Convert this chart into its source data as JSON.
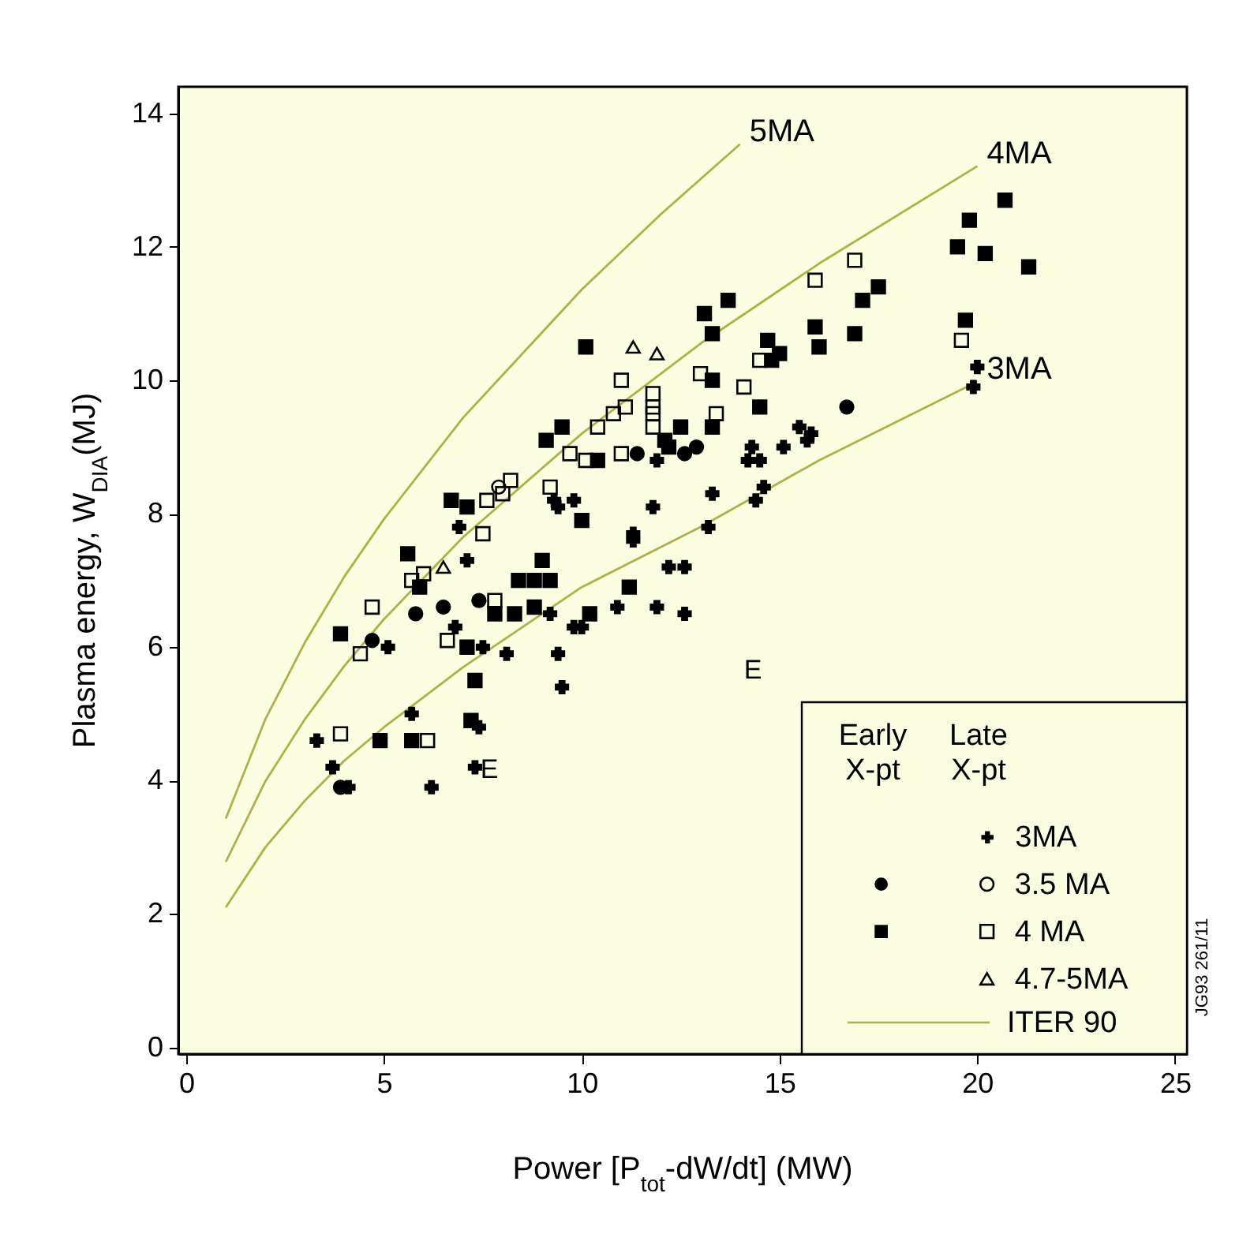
{
  "chart_data": {
    "type": "scatter",
    "xlabel": "Power [P$_{tot}$-dW/dt] (MW)",
    "ylabel": "Plasma energy, W$_{DIA}$(MJ)",
    "xlim": [
      -0.2,
      25.3
    ],
    "ylim": [
      -0.1,
      14.4
    ],
    "xticks": [
      0,
      5,
      10,
      15,
      20,
      25
    ],
    "yticks": [
      0,
      2,
      4,
      6,
      8,
      10,
      12,
      14
    ],
    "legend": "bottom right",
    "annotations": [
      "Early X-pt",
      "Late X-pt",
      "ITER 90",
      "JG93 261/11",
      "E",
      "E"
    ],
    "series": [
      {
        "name": "3MA",
        "marker": "cross",
        "color": "#000000",
        "x": [
          6.9,
          9.3,
          9.8,
          11.8,
          11.3,
          11.9,
          20.0,
          19.9,
          15.5,
          15.8,
          15.7,
          15.1,
          14.3,
          14.2,
          14.5,
          14.6,
          14.4,
          13.3,
          13.2,
          7.1,
          6.8,
          5.1,
          7.5,
          8.1,
          9.4,
          9.5,
          9.2,
          9.8,
          10.0,
          10.9,
          11.9,
          12.6,
          12.2,
          12.6,
          11.3,
          9.4,
          5.7,
          3.3,
          3.7,
          4.1,
          6.2,
          7.4,
          7.3
        ],
        "values": [
          7.8,
          8.2,
          8.2,
          8.1,
          7.7,
          8.8,
          10.2,
          9.9,
          9.3,
          9.2,
          9.1,
          9.0,
          9.0,
          8.8,
          8.8,
          8.4,
          8.2,
          8.3,
          7.8,
          7.3,
          6.3,
          6.0,
          6.0,
          5.9,
          5.9,
          5.4,
          6.5,
          6.3,
          6.3,
          6.6,
          6.6,
          6.5,
          7.2,
          7.2,
          7.6,
          8.1,
          5.0,
          4.6,
          4.2,
          3.9,
          3.9,
          4.8,
          4.2
        ]
      },
      {
        "marker": "circle",
        "color": "#000000",
        "x": [
          11.4,
          12.6,
          12.9,
          16.7,
          6.5,
          5.8,
          7.4,
          4.7,
          3.9
        ],
        "values": [
          8.9,
          8.9,
          9.0,
          9.6,
          6.6,
          6.5,
          6.7,
          6.1,
          3.9
        ]
      },
      {
        "name": "3.5 MA",
        "marker": "circle",
        "color": "#000000",
        "x": [
          7.9
        ],
        "values": [
          8.4
        ]
      },
      {
        "marker": "square",
        "color": "#000000",
        "x": [
          10.1,
          13.1,
          12.5,
          9.1,
          9.5,
          6.7,
          7.1,
          10.0,
          10.4,
          12.2,
          20.7,
          19.8,
          19.5,
          20.2,
          21.3,
          19.7,
          17.5,
          17.1,
          16.9,
          15.9,
          16.0,
          13.7,
          13.3,
          14.7,
          15.0,
          14.8,
          13.3,
          14.5,
          13.3,
          12.1,
          5.6,
          5.9,
          3.9,
          8.4,
          8.8,
          9.2,
          7.8,
          8.3,
          8.8,
          7.1,
          7.3,
          7.2,
          4.9,
          5.7,
          11.2,
          10.2,
          9.0
        ],
        "values": [
          10.5,
          11.0,
          9.3,
          9.1,
          9.3,
          8.2,
          8.1,
          7.9,
          8.8,
          9.0,
          12.7,
          12.4,
          12.0,
          11.9,
          11.7,
          10.9,
          11.4,
          11.2,
          10.7,
          10.8,
          10.5,
          11.2,
          10.7,
          10.6,
          10.4,
          10.3,
          10.0,
          9.6,
          9.3,
          9.1,
          7.4,
          6.9,
          6.2,
          7.0,
          7.0,
          7.0,
          6.5,
          6.5,
          6.6,
          6.0,
          5.5,
          4.9,
          4.6,
          4.6,
          6.9,
          6.5,
          7.3
        ]
      },
      {
        "name": "4 MA",
        "marker": "square",
        "color": "#000000",
        "x": [
          11.0,
          13.0,
          11.8,
          11.8,
          11.8,
          11.8,
          11.1,
          10.8,
          10.4,
          9.7,
          10.1,
          11.0,
          8.2,
          8.0,
          7.6,
          9.2,
          7.5,
          15.9,
          16.9,
          14.5,
          14.1,
          13.4,
          19.6,
          4.7,
          4.4,
          5.7,
          6.0,
          6.6,
          3.9,
          6.1,
          7.8
        ],
        "values": [
          10.0,
          10.1,
          9.8,
          9.6,
          9.5,
          9.3,
          9.6,
          9.5,
          9.3,
          8.9,
          8.8,
          8.9,
          8.5,
          8.3,
          8.2,
          8.4,
          7.7,
          11.5,
          11.8,
          10.3,
          9.9,
          9.5,
          10.6,
          6.6,
          5.9,
          7.0,
          7.1,
          6.1,
          4.7,
          4.6,
          6.7
        ]
      },
      {
        "name": "4.7-5MA",
        "marker": "triangle",
        "color": "#000000",
        "x": [
          11.3,
          11.9,
          6.5
        ],
        "values": [
          10.5,
          10.4,
          7.2
        ]
      },
      {
        "name": "5MA",
        "type": "line",
        "color": "#aeb244",
        "x": [
          1,
          2,
          3,
          4,
          5,
          7,
          10,
          12,
          14
        ],
        "values": [
          3.43,
          4.92,
          6.07,
          7.06,
          7.92,
          9.44,
          11.36,
          12.49,
          13.54
        ]
      },
      {
        "name": "4MA",
        "type": "line",
        "color": "#aeb244",
        "x": [
          1,
          2,
          3,
          4,
          5,
          7,
          10,
          13,
          16,
          20
        ],
        "values": [
          2.78,
          3.99,
          4.92,
          5.72,
          6.42,
          7.65,
          9.2,
          10.55,
          11.75,
          13.21
        ]
      },
      {
        "name": "3MA",
        "type": "line",
        "color": "#aeb244",
        "x": [
          1,
          2,
          3,
          4,
          5,
          7,
          10,
          13,
          16,
          20
        ],
        "values": [
          2.1,
          3.0,
          3.7,
          4.3,
          4.8,
          5.7,
          6.9,
          7.8,
          8.8,
          9.98
        ]
      }
    ]
  }
}
